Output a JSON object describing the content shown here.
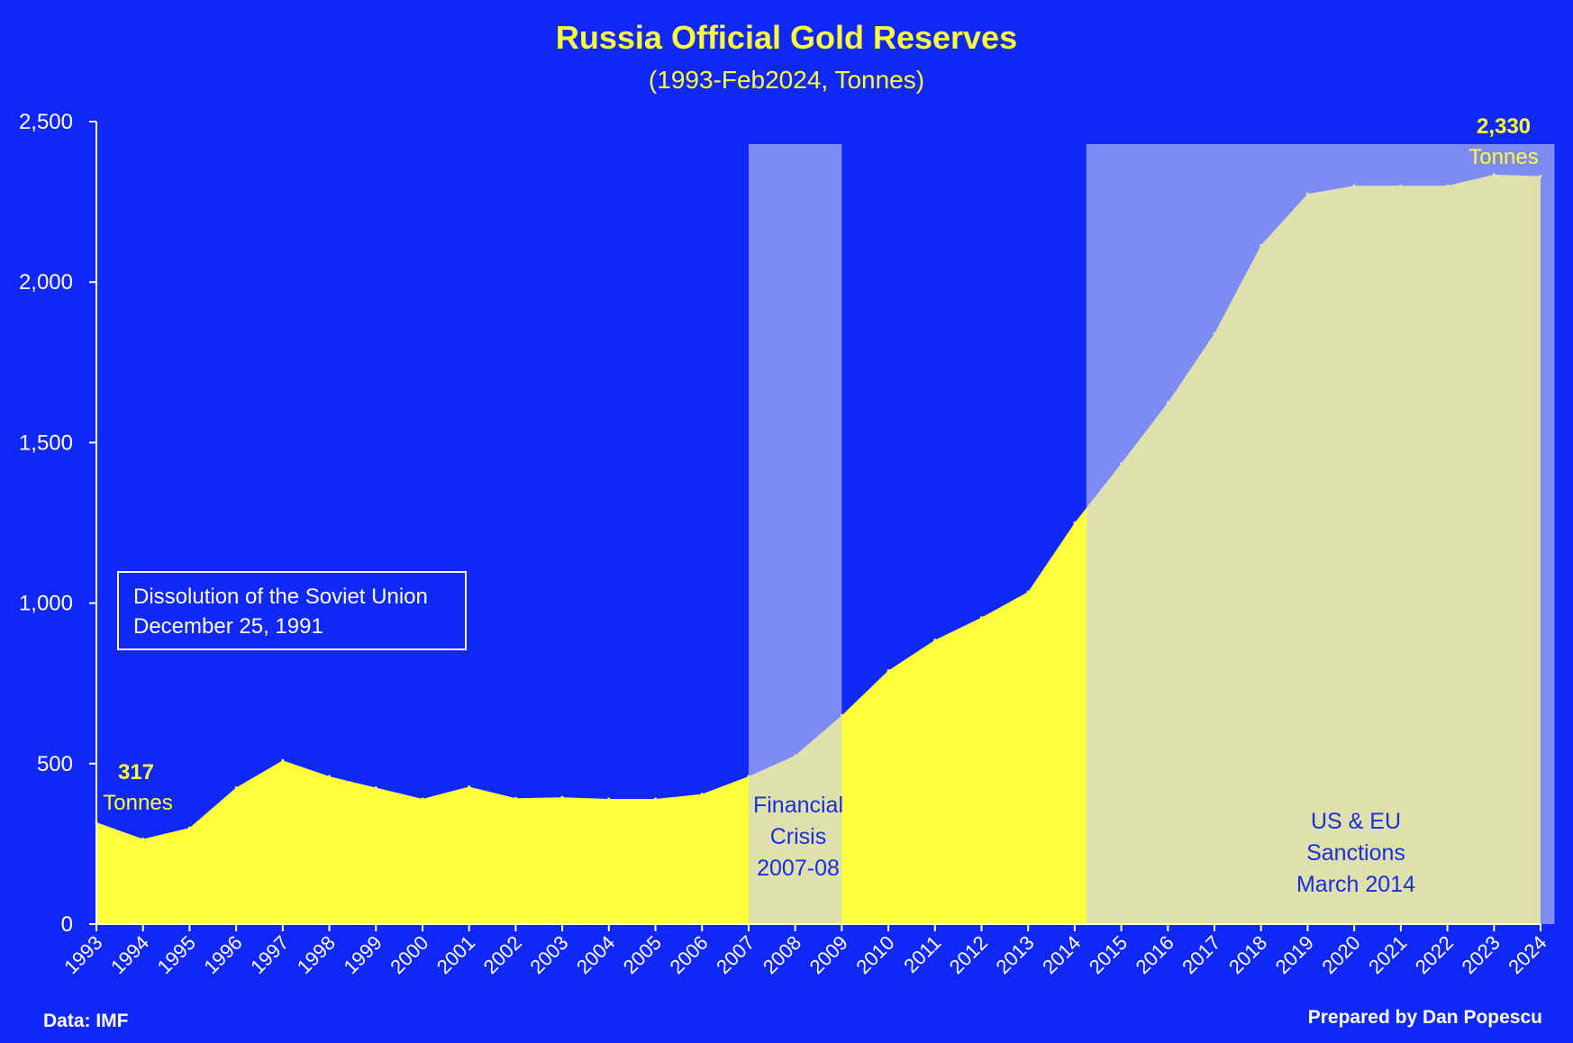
{
  "chart_data": {
    "type": "area",
    "title": "Russia Official Gold Reserves",
    "subtitle": "(1993-Feb2024, Tonnes)",
    "xlabel": "",
    "ylabel": "",
    "x": [
      1993,
      1994,
      1995,
      1996,
      1997,
      1998,
      1999,
      2000,
      2001,
      2002,
      2003,
      2004,
      2005,
      2006,
      2007,
      2008,
      2009,
      2010,
      2011,
      2012,
      2013,
      2014,
      2015,
      2016,
      2017,
      2018,
      2019,
      2020,
      2021,
      2022,
      2023,
      2024
    ],
    "x_tick_labels": [
      "1993",
      "1994",
      "1995",
      "1996",
      "1997",
      "1998",
      "1999",
      "2000",
      "2001",
      "2002",
      "2003",
      "2004",
      "2005",
      "2006",
      "2007",
      "2008",
      "2009",
      "2010",
      "2011",
      "2012",
      "2013",
      "2014",
      "2015",
      "2016",
      "2017",
      "2018",
      "2019",
      "2020",
      "2021",
      "2022",
      "2023",
      "2024"
    ],
    "values": [
      317,
      265,
      300,
      425,
      510,
      460,
      425,
      390,
      428,
      392,
      395,
      390,
      390,
      405,
      460,
      525,
      650,
      790,
      885,
      955,
      1035,
      1250,
      1435,
      1625,
      1840,
      2115,
      2275,
      2300,
      2300,
      2300,
      2335,
      2330
    ],
    "ylim": [
      0,
      2500
    ],
    "y_ticks": [
      0,
      500,
      1000,
      1500,
      2000,
      2500
    ],
    "y_tick_labels": [
      "0",
      "500",
      "1,000",
      "1,500",
      "2,000",
      "2,500"
    ],
    "grid": false,
    "legend": "none",
    "colors": {
      "background": "#1028f5",
      "area": "#ffff3c",
      "shade": "#c8cdf5",
      "title": "#ffff3c",
      "axis": "#ffffff",
      "shade_text": "#1a2de0"
    },
    "shaded_periods": [
      {
        "x_start": 2007,
        "x_end": 2009,
        "y_top": 2430,
        "label_lines": [
          "Financial",
          "Crisis",
          "2007-08"
        ]
      },
      {
        "x_start": 2014.25,
        "x_end": 2024.3,
        "y_top": 2430,
        "label_lines": [
          "US & EU",
          "Sanctions",
          "March 2014"
        ]
      }
    ],
    "annotations": {
      "start_value": "317",
      "start_unit": "Tonnes",
      "end_value": "2,330",
      "end_unit": "Tonnes"
    },
    "note_lines": [
      "Dissolution of the Soviet Union",
      "December 25, 1991"
    ]
  },
  "footer": {
    "source": "Data: IMF",
    "credit": "Prepared by Dan Popescu"
  }
}
